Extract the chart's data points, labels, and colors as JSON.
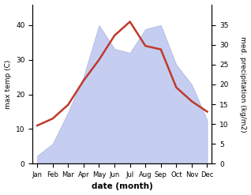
{
  "months": [
    "Jan",
    "Feb",
    "Mar",
    "Apr",
    "May",
    "Jun",
    "Jul",
    "Aug",
    "Sep",
    "Oct",
    "Nov",
    "Dec"
  ],
  "max_temp": [
    11,
    13,
    17,
    24,
    30,
    37,
    41,
    34,
    33,
    22,
    18,
    15
  ],
  "precipitation": [
    2,
    5,
    13,
    22,
    35,
    29,
    28,
    34,
    35,
    25,
    20,
    11
  ],
  "temp_color": "#c0392b",
  "precip_fill_color": "#c5cef0",
  "precip_edge_color": "#aab4df",
  "temp_ylim": [
    0,
    46
  ],
  "precip_ylim": [
    0,
    40.25
  ],
  "temp_yticks": [
    0,
    10,
    20,
    30,
    40
  ],
  "precip_yticks": [
    0,
    5,
    10,
    15,
    20,
    25,
    30,
    35
  ],
  "xlabel": "date (month)",
  "ylabel_left": "max temp (C)",
  "ylabel_right": "med. precipitation (kg/m2)"
}
